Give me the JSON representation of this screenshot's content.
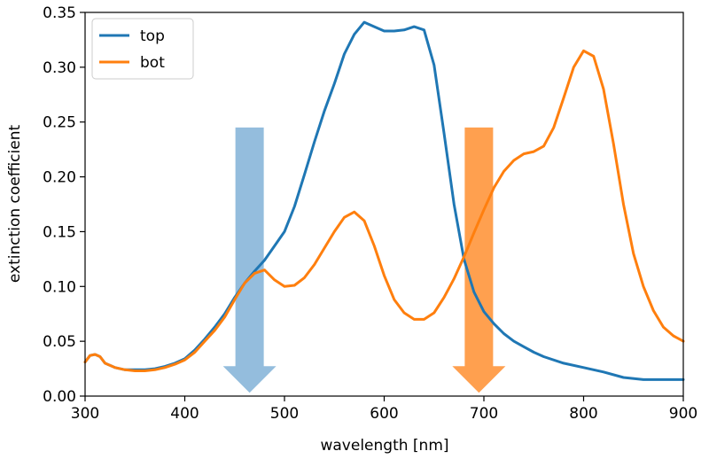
{
  "chart_data": {
    "type": "line",
    "xlabel": "wavelength [nm]",
    "ylabel": "extinction coefficient",
    "xlim": [
      300,
      900
    ],
    "ylim": [
      0,
      0.35
    ],
    "xticks": [
      300,
      400,
      500,
      600,
      700,
      800,
      900
    ],
    "yticks": [
      "0.00",
      "0.05",
      "0.10",
      "0.15",
      "0.20",
      "0.25",
      "0.30",
      "0.35"
    ],
    "grid": false,
    "legend_position": "top-left",
    "series": [
      {
        "name": "top",
        "color": "#1f77b4",
        "x": [
          300,
          305,
          310,
          315,
          320,
          330,
          340,
          350,
          360,
          370,
          380,
          390,
          400,
          410,
          420,
          430,
          440,
          450,
          460,
          470,
          480,
          490,
          500,
          510,
          520,
          530,
          540,
          550,
          560,
          570,
          580,
          590,
          600,
          610,
          620,
          630,
          640,
          650,
          660,
          670,
          680,
          690,
          700,
          710,
          720,
          730,
          740,
          750,
          760,
          780,
          800,
          820,
          840,
          860,
          880,
          900
        ],
        "y": [
          0.031,
          0.037,
          0.038,
          0.036,
          0.03,
          0.026,
          0.024,
          0.024,
          0.024,
          0.025,
          0.027,
          0.03,
          0.034,
          0.042,
          0.052,
          0.063,
          0.075,
          0.09,
          0.103,
          0.114,
          0.124,
          0.137,
          0.15,
          0.173,
          0.202,
          0.232,
          0.26,
          0.285,
          0.312,
          0.33,
          0.341,
          0.337,
          0.333,
          0.333,
          0.334,
          0.337,
          0.334,
          0.302,
          0.24,
          0.175,
          0.125,
          0.095,
          0.077,
          0.066,
          0.057,
          0.05,
          0.045,
          0.04,
          0.036,
          0.03,
          0.026,
          0.022,
          0.017,
          0.015,
          0.015,
          0.015
        ]
      },
      {
        "name": "bot",
        "color": "#ff7f0e",
        "x": [
          300,
          305,
          310,
          315,
          320,
          330,
          340,
          350,
          360,
          370,
          380,
          390,
          400,
          410,
          420,
          430,
          440,
          450,
          460,
          470,
          480,
          490,
          500,
          510,
          520,
          530,
          540,
          550,
          560,
          570,
          580,
          590,
          600,
          610,
          620,
          630,
          640,
          650,
          660,
          670,
          680,
          690,
          700,
          710,
          720,
          730,
          740,
          750,
          760,
          770,
          780,
          790,
          800,
          810,
          820,
          830,
          840,
          850,
          860,
          870,
          880,
          890,
          900
        ],
        "y": [
          0.031,
          0.037,
          0.038,
          0.036,
          0.03,
          0.026,
          0.024,
          0.023,
          0.023,
          0.024,
          0.026,
          0.029,
          0.033,
          0.04,
          0.05,
          0.06,
          0.072,
          0.088,
          0.103,
          0.112,
          0.115,
          0.106,
          0.1,
          0.101,
          0.108,
          0.12,
          0.135,
          0.15,
          0.163,
          0.168,
          0.16,
          0.137,
          0.11,
          0.088,
          0.076,
          0.07,
          0.07,
          0.076,
          0.09,
          0.107,
          0.127,
          0.149,
          0.17,
          0.19,
          0.205,
          0.215,
          0.221,
          0.223,
          0.228,
          0.245,
          0.272,
          0.3,
          0.315,
          0.31,
          0.28,
          0.23,
          0.175,
          0.13,
          0.1,
          0.078,
          0.063,
          0.055,
          0.05
        ]
      }
    ],
    "annotations": [
      {
        "type": "arrow",
        "color": "#94bddd",
        "x": 465,
        "y_start": 0.245,
        "y_end": 0.003
      },
      {
        "type": "arrow",
        "color": "#ffa04f",
        "x": 695,
        "y_start": 0.245,
        "y_end": 0.003
      }
    ]
  }
}
